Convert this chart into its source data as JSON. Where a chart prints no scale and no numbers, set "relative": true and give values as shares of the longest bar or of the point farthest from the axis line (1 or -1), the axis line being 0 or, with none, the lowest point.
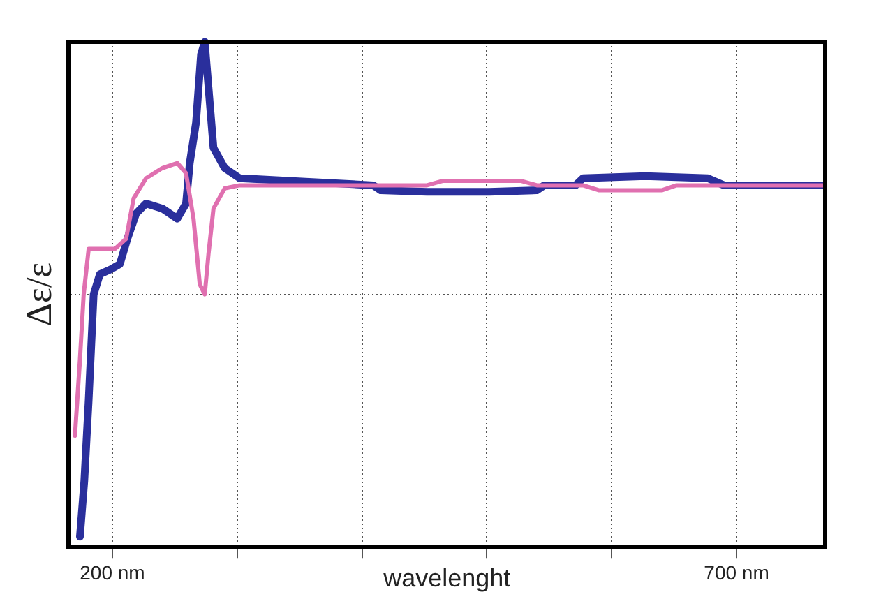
{
  "chart_data": {
    "type": "line",
    "relative": true,
    "xlabel": "wavelenght",
    "ylabel": "Δε/ε",
    "xlim": [
      165,
      771
    ],
    "xticks": [
      {
        "value": 200,
        "label": "200 nm"
      },
      {
        "value": 300,
        "label": null
      },
      {
        "value": 400,
        "label": null
      },
      {
        "value": 500,
        "label": null
      },
      {
        "value": 600,
        "label": null
      },
      {
        "value": 700,
        "label": "700 nm"
      }
    ],
    "grid": true,
    "legend": false,
    "marker": "none",
    "line_style": "solid",
    "series": [
      {
        "color": "#2a2f9c",
        "x": [
          174,
          177.5,
          181,
          185,
          190,
          199,
          206,
          212,
          219,
          227,
          240,
          252,
          259,
          262,
          267,
          271,
          274,
          277,
          281,
          290,
          302,
          409,
          415,
          452,
          502,
          540,
          546,
          571,
          577,
          627,
          677,
          690,
          771
        ],
        "values": [
          0.02,
          0.13,
          0.29,
          0.5,
          0.54,
          0.55,
          0.56,
          0.61,
          0.66,
          0.68,
          0.67,
          0.65,
          0.68,
          0.76,
          0.84,
          0.975,
          1,
          0.91,
          0.79,
          0.75,
          0.73,
          0.716,
          0.706,
          0.703,
          0.703,
          0.706,
          0.716,
          0.716,
          0.73,
          0.734,
          0.73,
          0.716,
          0.716
        ]
      },
      {
        "color": "#e070b0",
        "x": [
          170,
          174,
          177,
          181,
          190,
          202,
          211,
          217,
          227,
          240,
          252,
          259,
          265,
          270,
          274,
          277,
          281,
          290,
          302,
          452,
          465,
          527,
          540,
          577,
          590,
          640,
          652,
          771
        ],
        "values": [
          0.22,
          0.37,
          0.5,
          0.59,
          0.59,
          0.59,
          0.61,
          0.69,
          0.73,
          0.75,
          0.76,
          0.74,
          0.65,
          0.52,
          0.5,
          0.58,
          0.67,
          0.71,
          0.716,
          0.716,
          0.725,
          0.725,
          0.716,
          0.716,
          0.706,
          0.706,
          0.716,
          0.716
        ]
      }
    ]
  }
}
